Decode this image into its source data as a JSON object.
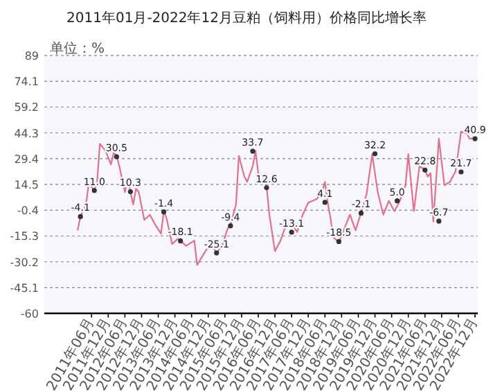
{
  "chart_data": {
    "type": "line",
    "title": "2011年01月-2022年12月豆粕（饲料用）价格同比增长率",
    "ylabel": "单位：%",
    "x": [
      "2011-01",
      "2011-02",
      "2011-04",
      "2011-05",
      "2011-07",
      "2011-08",
      "2011-09",
      "2011-11",
      "2012-01",
      "2012-02",
      "2012-03",
      "2012-04",
      "2012-06",
      "2012-07",
      "2012-08",
      "2012-09",
      "2012-10",
      "2012-11",
      "2013-01",
      "2013-03",
      "2013-05",
      "2013-07",
      "2013-08",
      "2013-09",
      "2013-11",
      "2014-01",
      "2014-02",
      "2014-04",
      "2014-07",
      "2014-08",
      "2014-11",
      "2015-01",
      "2015-03",
      "2015-05",
      "2015-07",
      "2015-08",
      "2015-10",
      "2015-11",
      "2016-01",
      "2016-02",
      "2016-04",
      "2016-05",
      "2016-06",
      "2016-08",
      "2016-09",
      "2016-10",
      "2016-12",
      "2017-02",
      "2017-04",
      "2017-06",
      "2017-08",
      "2017-10",
      "2017-12",
      "2018-03",
      "2018-05",
      "2018-06",
      "2018-07",
      "2018-08",
      "2018-09",
      "2018-11",
      "2019-01",
      "2019-03",
      "2019-05",
      "2019-07",
      "2019-09",
      "2019-11",
      "2020-01",
      "2020-03",
      "2020-05",
      "2020-07",
      "2020-09",
      "2020-11",
      "2020-12",
      "2021-02",
      "2021-04",
      "2021-06",
      "2021-07",
      "2021-08",
      "2021-09",
      "2021-11",
      "2022-01",
      "2022-03",
      "2022-05",
      "2022-07",
      "2022-09",
      "2022-10",
      "2022-12"
    ],
    "series": [
      {
        "color": "#e07090",
        "values": [
          -12,
          -4,
          3,
          15,
          11,
          16,
          38,
          34,
          26,
          33,
          31,
          25,
          10,
          18,
          10,
          3,
          12,
          10,
          -6,
          -3,
          -9,
          -14,
          -1,
          -5,
          -20,
          -17,
          -18,
          -21,
          -18,
          -32,
          -24,
          -20,
          -25,
          -21,
          -11,
          -9,
          3,
          31,
          19,
          16,
          25,
          34,
          21,
          18,
          13,
          -3,
          -24,
          -18,
          -9,
          -8,
          -13,
          -3,
          4,
          6,
          10,
          16,
          4,
          -5,
          -16,
          -19,
          -11,
          -3,
          -12,
          -2,
          9,
          32,
          10,
          -3,
          5,
          -1,
          5,
          14,
          32,
          -1,
          25,
          23,
          19,
          21,
          -7,
          41,
          14,
          16,
          22,
          45,
          44,
          41,
          41
        ]
      },
      {
        "type": "scatter",
        "color": "#333333",
        "marker": "circle",
        "x": [
          "2011-02",
          "2011-07",
          "2012-03",
          "2012-08",
          "2013-08",
          "2014-02",
          "2015-03",
          "2015-08",
          "2016-04",
          "2016-09",
          "2017-06",
          "2018-06",
          "2018-11",
          "2019-07",
          "2019-12",
          "2020-08",
          "2021-06",
          "2021-11",
          "2022-07",
          "2022-12"
        ],
        "values": [
          -4.1,
          11.0,
          30.5,
          10.3,
          -1.4,
          -18.1,
          -25.1,
          -9.4,
          33.7,
          12.6,
          -13.1,
          4.1,
          -18.5,
          -2.1,
          32.2,
          5.0,
          22.8,
          -6.7,
          21.7,
          40.9
        ],
        "value_labels": [
          "-4.1",
          "11.0",
          "30.5",
          "10.3",
          "-1.4",
          "-18.1",
          "-25.1",
          "-9.4",
          "33.7",
          "12.6",
          "-13.1",
          "4.1",
          "-18.5",
          "-2.1",
          "32.2",
          "5.0",
          "22.8",
          "-6.7",
          "21.7",
          "40.9"
        ]
      }
    ],
    "xlim": [
      "2010-01",
      "2023-01"
    ],
    "xticks": [
      {
        "value": "2011-06",
        "label": "2011年06月"
      },
      {
        "value": "2011-12",
        "label": "2011年12月"
      },
      {
        "value": "2012-06",
        "label": "2012年06月"
      },
      {
        "value": "2012-12",
        "label": "2012年12月"
      },
      {
        "value": "2013-06",
        "label": "2013年06月"
      },
      {
        "value": "2013-12",
        "label": "2013年12月"
      },
      {
        "value": "2014-06",
        "label": "2014年06月"
      },
      {
        "value": "2014-12",
        "label": "2014年12月"
      },
      {
        "value": "2015-06",
        "label": "2015年06月"
      },
      {
        "value": "2015-12",
        "label": "2015年12月"
      },
      {
        "value": "2016-06",
        "label": "2016年06月"
      },
      {
        "value": "2016-12",
        "label": "2016年12月"
      },
      {
        "value": "2017-06",
        "label": "2017年06月"
      },
      {
        "value": "2017-12",
        "label": "2017年12月"
      },
      {
        "value": "2018-06",
        "label": "2018年06月"
      },
      {
        "value": "2018-12",
        "label": "2018年12月"
      },
      {
        "value": "2019-06",
        "label": "2019年06月"
      },
      {
        "value": "2019-12",
        "label": "2019年12月"
      },
      {
        "value": "2020-06",
        "label": "2020年06月"
      },
      {
        "value": "2020-12",
        "label": "2020年12月"
      },
      {
        "value": "2021-06",
        "label": "2021年06月"
      },
      {
        "value": "2021-12",
        "label": "2021年12月"
      },
      {
        "value": "2022-06",
        "label": "2022年06月"
      },
      {
        "value": "2022-12",
        "label": "2022年12月"
      }
    ],
    "ylim": [
      -60,
      89
    ],
    "yticks": [
      89,
      74.1,
      59.2,
      44.3,
      29.4,
      14.5,
      -0.4,
      -15.3,
      -30.2,
      -45.1,
      -60
    ],
    "grid": "y",
    "line_style": "solid"
  }
}
